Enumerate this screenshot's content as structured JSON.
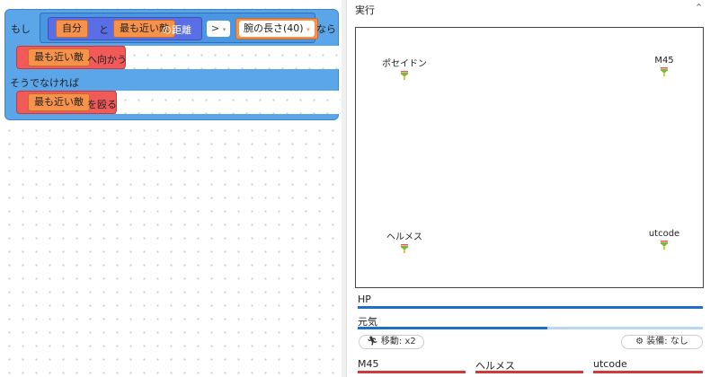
{
  "editor": {
    "if_label": "もし",
    "self_label": "自分",
    "and_label": "と",
    "nearest_enemy": "最も近い敵",
    "distance_label": "の距離",
    "operator": ">",
    "arm_length": "腕の長さ(40)",
    "then_label": "なら",
    "move_toward": "へ向かう",
    "else_label": "そうでなければ",
    "attack": "を殴る"
  },
  "run_panel": {
    "title": "実行",
    "characters": [
      {
        "name": "ポセイドン"
      },
      {
        "name": "M45"
      },
      {
        "name": "ヘルメス"
      },
      {
        "name": "utcode"
      }
    ],
    "hp_label": "HP",
    "hp_value": 1.0,
    "energy_label": "元気",
    "energy_value": 0.55,
    "move_button": "移動: x2",
    "equip_button": "装備: なし",
    "opponents": [
      {
        "name": "M45"
      },
      {
        "name": "ヘルメス"
      },
      {
        "name": "utcode"
      }
    ],
    "colors": {
      "block_blue": "#5ba5e9",
      "block_red": "#f25a5a",
      "block_orange": "#f7924a",
      "bar_blue": "#1f6fc5",
      "bar_red": "#d13a3a"
    }
  }
}
